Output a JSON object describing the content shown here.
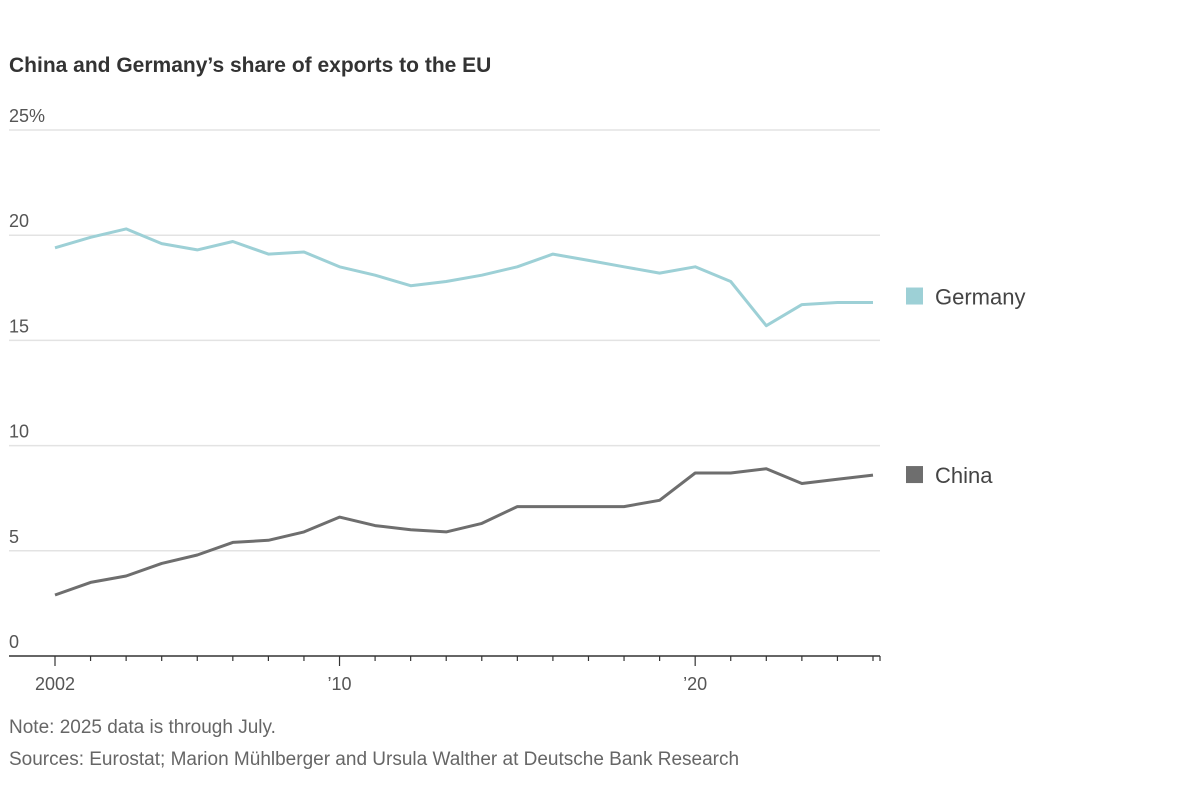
{
  "chart_data": {
    "type": "line",
    "title": "China and Germany’s share of exports to the EU",
    "x": [
      2002,
      2003,
      2004,
      2005,
      2006,
      2007,
      2008,
      2009,
      2010,
      2011,
      2012,
      2013,
      2014,
      2015,
      2016,
      2017,
      2018,
      2019,
      2020,
      2021,
      2022,
      2023,
      2024,
      2025
    ],
    "series": [
      {
        "name": "Germany",
        "color": "#9dd0d6",
        "values": [
          19.4,
          19.9,
          20.3,
          19.6,
          19.3,
          19.7,
          19.1,
          19.2,
          18.5,
          18.1,
          17.6,
          17.8,
          18.1,
          18.5,
          19.1,
          18.8,
          18.5,
          18.2,
          18.5,
          17.8,
          15.7,
          16.7,
          16.8,
          16.8
        ]
      },
      {
        "name": "China",
        "color": "#6e6e6e",
        "values": [
          2.9,
          3.5,
          3.8,
          4.4,
          4.8,
          5.4,
          5.5,
          5.9,
          6.6,
          6.2,
          6.0,
          5.9,
          6.3,
          7.1,
          7.1,
          7.1,
          7.1,
          7.4,
          8.7,
          8.7,
          8.9,
          8.2,
          8.4,
          8.6
        ]
      }
    ],
    "ylim": [
      0,
      25
    ],
    "y_ticks": [
      0,
      5,
      10,
      15,
      20,
      25
    ],
    "y_tick_labels": [
      "0",
      "5",
      "10",
      "15",
      "20",
      "25%"
    ],
    "x_tick_labels": [
      {
        "year": 2002,
        "label": "2002"
      },
      {
        "year": 2010,
        "label": "’10"
      },
      {
        "year": 2020,
        "label": "’20"
      }
    ],
    "grid": true,
    "legend": "right"
  },
  "note": "Note: 2025 data is through July.",
  "sources": "Sources: Eurostat; Marion Mühlberger and Ursula Walther at Deutsche Bank Research"
}
